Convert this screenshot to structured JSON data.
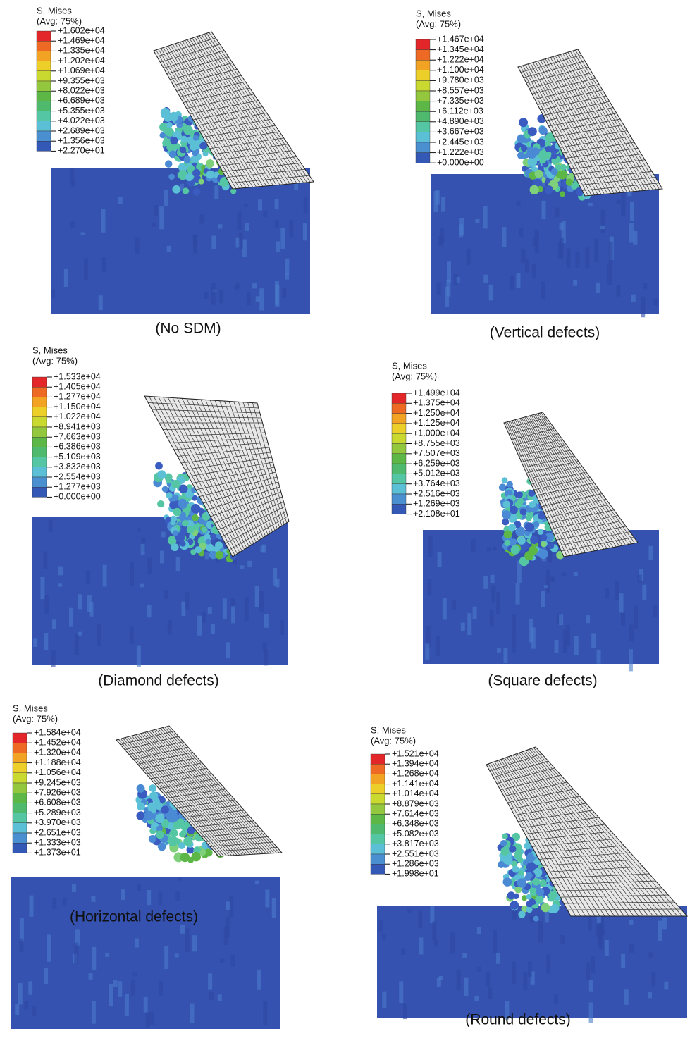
{
  "panels": [
    {
      "title": "S, Mises",
      "subtitle": "(Avg: 75%)",
      "legend": [
        "+1.602e+04",
        "+1.469e+04",
        "+1.335e+04",
        "+1.202e+04",
        "+1.069e+04",
        "+9.355e+03",
        "+8.022e+03",
        "+6.689e+03",
        "+5.355e+03",
        "+4.022e+03",
        "+2.689e+03",
        "+1.356e+03",
        "+2.270e+01"
      ],
      "caption": "(No SDM)"
    },
    {
      "title": "S, Mises",
      "subtitle": "(Avg: 75%)",
      "legend": [
        "+1.467e+04",
        "+1.345e+04",
        "+1.222e+04",
        "+1.100e+04",
        "+9.780e+03",
        "+8.557e+03",
        "+7.335e+03",
        "+6.112e+03",
        "+4.890e+03",
        "+3.667e+03",
        "+2.445e+03",
        "+1.222e+03",
        "+0.000e+00"
      ],
      "caption": "(Vertical defects)"
    },
    {
      "title": "S, Mises",
      "subtitle": "(Avg: 75%)",
      "legend": [
        "+1.533e+04",
        "+1.405e+04",
        "+1.277e+04",
        "+1.150e+04",
        "+1.022e+04",
        "+8.941e+03",
        "+7.663e+03",
        "+6.386e+03",
        "+5.109e+03",
        "+3.832e+03",
        "+2.554e+03",
        "+1.277e+03",
        "+0.000e+00"
      ],
      "caption": "(Diamond defects)"
    },
    {
      "title": "S, Mises",
      "subtitle": "(Avg: 75%)",
      "legend": [
        "+1.499e+04",
        "+1.375e+04",
        "+1.250e+04",
        "+1.125e+04",
        "+1.000e+04",
        "+8.755e+03",
        "+7.507e+03",
        "+6.259e+03",
        "+5.012e+03",
        "+3.764e+03",
        "+2.516e+03",
        "+1.269e+03",
        "+2.108e+01"
      ],
      "caption": "(Square defects)"
    },
    {
      "title": "S, Mises",
      "subtitle": "(Avg: 75%)",
      "legend": [
        "+1.584e+04",
        "+1.452e+04",
        "+1.320e+04",
        "+1.188e+04",
        "+1.056e+04",
        "+9.245e+03",
        "+7.926e+03",
        "+6.608e+03",
        "+5.289e+03",
        "+3.970e+03",
        "+2.651e+03",
        "+1.333e+03",
        "+1.373e+01"
      ],
      "caption": "(Horizontal defects)"
    },
    {
      "title": "S, Mises",
      "subtitle": "(Avg: 75%)",
      "legend": [
        "+1.521e+04",
        "+1.394e+04",
        "+1.268e+04",
        "+1.141e+04",
        "+1.014e+04",
        "+8.879e+03",
        "+7.614e+03",
        "+6.348e+03",
        "+5.082e+03",
        "+3.817e+03",
        "+2.551e+03",
        "+1.286e+03",
        "+1.998e+01"
      ],
      "caption": "(Round defects)"
    }
  ]
}
